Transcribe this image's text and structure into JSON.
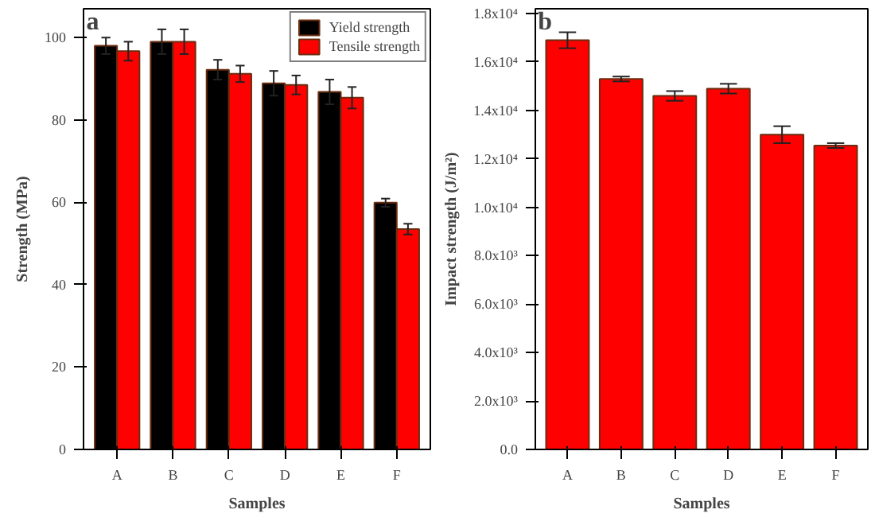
{
  "chart_data": [
    {
      "type": "bar",
      "title": "a",
      "xlabel": "Samples",
      "ylabel": "Strength (MPa)",
      "categories": [
        "A",
        "B",
        "C",
        "D",
        "E",
        "F"
      ],
      "series": [
        {
          "name": "Yield strength",
          "color": "#000000",
          "values": [
            98,
            99,
            92.2,
            88.9,
            86.8,
            59.9
          ],
          "errors": [
            2,
            3,
            2.4,
            3,
            3,
            1
          ]
        },
        {
          "name": "Tensile strength",
          "color": "#ff0000",
          "values": [
            96.7,
            99,
            91.2,
            88.5,
            85.4,
            53.5
          ],
          "errors": [
            2.3,
            3,
            2,
            2.3,
            2.6,
            1.3
          ]
        }
      ],
      "ylim": [
        0,
        107
      ],
      "yticks": [
        0,
        20,
        40,
        60,
        80,
        100
      ],
      "grid": false,
      "legend": "top right"
    },
    {
      "type": "bar",
      "title": "b",
      "xlabel": "Samples",
      "ylabel": "Impact strength (J/m²)",
      "categories": [
        "A",
        "B",
        "C",
        "D",
        "E",
        "F"
      ],
      "series": [
        {
          "color": "#ff0000",
          "values": [
            16900,
            15300,
            14600,
            14900,
            13000,
            12550
          ],
          "errors": [
            330,
            100,
            200,
            200,
            350,
            100
          ]
        }
      ],
      "ylim": [
        0,
        18200
      ],
      "yticks": [
        {
          "value": 0,
          "label": "0.0"
        },
        {
          "value": 2000,
          "label": "2.0x10³"
        },
        {
          "value": 4000,
          "label": "4.0x10³"
        },
        {
          "value": 6000,
          "label": "6.0x10³"
        },
        {
          "value": 8000,
          "label": "8.0x10³"
        },
        {
          "value": 10000,
          "label": "1.0x10⁴"
        },
        {
          "value": 12000,
          "label": "1.2x10⁴"
        },
        {
          "value": 14000,
          "label": "1.4x10⁴"
        },
        {
          "value": 16000,
          "label": "1.6x10⁴"
        },
        {
          "value": 18000,
          "label": "1.8x10⁴"
        }
      ],
      "grid": false
    }
  ]
}
